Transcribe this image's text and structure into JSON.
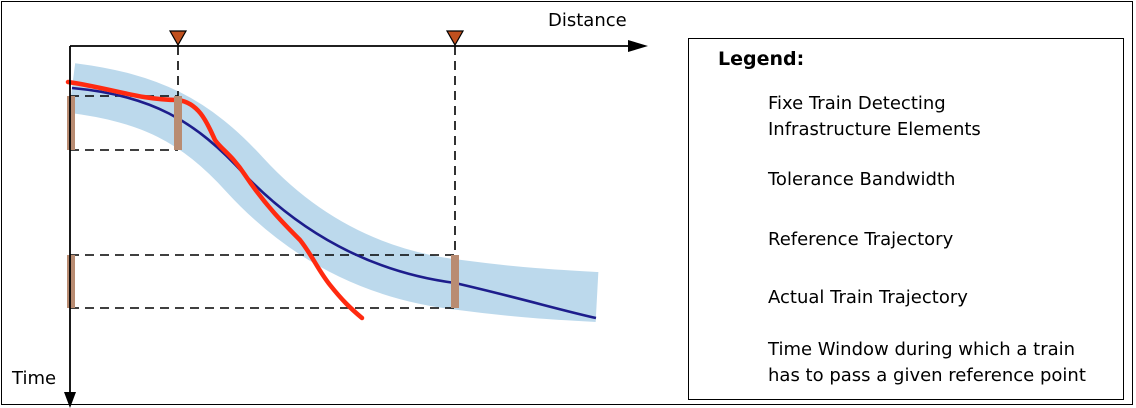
{
  "diagram": {
    "axis_labels": {
      "x": "Distance",
      "y": "Time"
    }
  },
  "legend": {
    "title": "Legend:",
    "items": [
      {
        "icon": "triangle-marker-icon",
        "label_line1": "Fixe Train Detecting",
        "label_line2": "Infrastructure Elements"
      },
      {
        "icon": "tolerance-band-icon",
        "label_line1": "Tolerance Bandwidth"
      },
      {
        "icon": "reference-line-icon",
        "label_line1": "Reference Trajectory"
      },
      {
        "icon": "actual-line-icon",
        "label_line1": "Actual Train Trajectory"
      },
      {
        "icon": "time-window-icon",
        "label_line1": "Time Window during which a train",
        "label_line2": "has to pass a given reference point"
      }
    ]
  },
  "colors": {
    "band": "#bcd9ec",
    "reference": "#1d1d8c",
    "actual": "#ff2a10",
    "window": "#b98c72",
    "marker": "#c0501e"
  }
}
